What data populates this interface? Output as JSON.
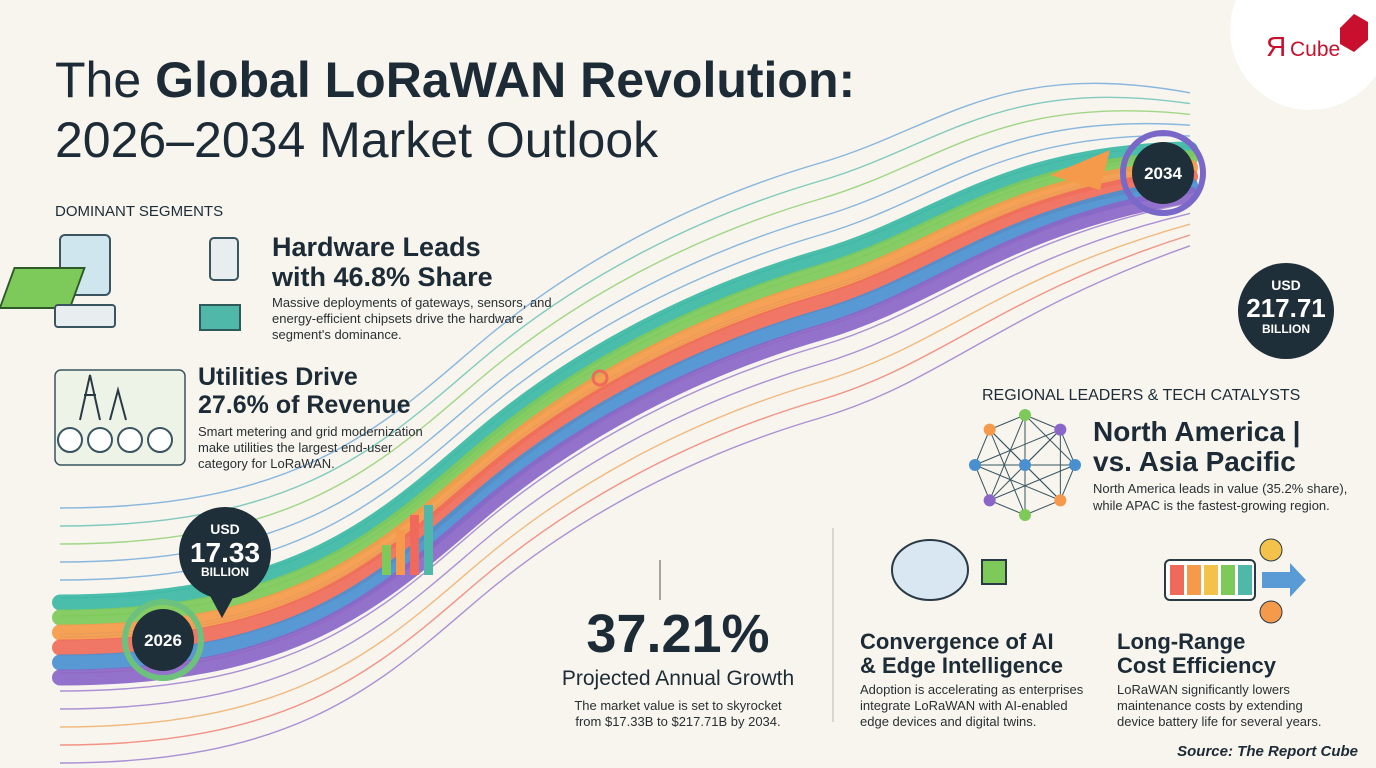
{
  "logo": {
    "mark": "Я",
    "name": "Cube"
  },
  "title": {
    "lead": "The",
    "emphasis": "Global LoRaWAN Revolution:",
    "line2": "2026–2034 Market Outlook"
  },
  "segments": {
    "heading": "DOMINANT SEGMENTS",
    "items": [
      {
        "heading": [
          "Hardware Leads",
          "with 46.8% Share"
        ],
        "body": [
          "Massive deployments of gateways, sensors, and",
          "energy-efficient chipsets drive the hardware",
          "segment's dominance."
        ]
      },
      {
        "heading": [
          "Utilities Drive",
          "27.6% of Revenue"
        ],
        "body": [
          "Smart metering and grid modernization",
          "make utilities the largest end-user",
          "category for LoRaWAN."
        ]
      }
    ]
  },
  "start": {
    "year": "2026",
    "currency": "USD",
    "amount": "17.33",
    "unit": "BILLION"
  },
  "end": {
    "year": "2034",
    "currency": "USD",
    "amount": "217.71",
    "unit": "BILLION"
  },
  "growth": {
    "rate": "37.21%",
    "label": "Projected Annual Growth",
    "body": [
      "The market value is set to skyrocket",
      "from $17.33B to $217.71B by 2034."
    ]
  },
  "regional": {
    "heading": "REGIONAL LEADERS & TECH CATALYSTS",
    "title": [
      "North America |",
      "vs. Asia Pacific"
    ],
    "body": [
      "North America leads in value (35.2% share),",
      "while APAC is the fastest-growing region."
    ]
  },
  "catalysts": [
    {
      "heading": [
        "Convergence of AI",
        "& Edge Intelligence"
      ],
      "body": [
        "Adoption is accelerating as enterprises",
        "integrate LoRaWAN with AI-enabled",
        "edge devices and digital twins."
      ]
    },
    {
      "heading": [
        "Long-Range",
        "Cost Efficiency"
      ],
      "body": [
        "LoRaWAN significantly lowers",
        "maintenance costs by extending",
        "device battery life for several years."
      ]
    }
  ],
  "source": "Source: The Report Cube"
}
